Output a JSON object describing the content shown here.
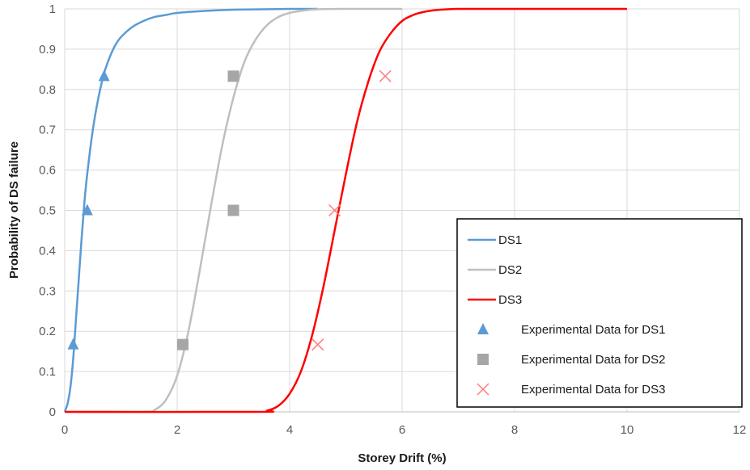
{
  "chart_data": {
    "type": "line",
    "title": "",
    "xlabel": "Storey Drift (%)",
    "ylabel": "Probability of DS failure",
    "xlim": [
      0,
      12
    ],
    "ylim": [
      0,
      1
    ],
    "x_ticks": [
      "0",
      "2",
      "4",
      "6",
      "8",
      "10",
      "12"
    ],
    "y_ticks": [
      "0",
      "0.1",
      "0.2",
      "0.3",
      "0.4",
      "0.5",
      "0.6",
      "0.7",
      "0.8",
      "0.9",
      "1"
    ],
    "grid": true,
    "legend_position": "bottom-right",
    "series": [
      {
        "name": "DS1",
        "kind": "line",
        "color": "#5b9bd5",
        "x": [
          0,
          0.05,
          0.1,
          0.15,
          0.2,
          0.25,
          0.3,
          0.35,
          0.4,
          0.5,
          0.6,
          0.7,
          0.8,
          0.9,
          1.0,
          1.2,
          1.4,
          1.6,
          1.8,
          2.0,
          2.5,
          3.0,
          3.5,
          4.0,
          4.5
        ],
        "y": [
          0,
          0.02,
          0.06,
          0.13,
          0.23,
          0.33,
          0.43,
          0.52,
          0.59,
          0.7,
          0.78,
          0.84,
          0.88,
          0.91,
          0.93,
          0.955,
          0.97,
          0.98,
          0.985,
          0.99,
          0.995,
          0.998,
          0.999,
          1.0,
          1.0
        ]
      },
      {
        "name": "DS2",
        "kind": "line",
        "color": "#bfbfbf",
        "x": [
          0,
          1.4,
          1.6,
          1.8,
          2.0,
          2.2,
          2.4,
          2.6,
          2.8,
          3.0,
          3.2,
          3.4,
          3.6,
          3.8,
          4.0,
          4.2,
          4.5,
          5.0,
          5.5,
          6.0
        ],
        "y": [
          0,
          0.0,
          0.005,
          0.03,
          0.09,
          0.2,
          0.35,
          0.51,
          0.66,
          0.78,
          0.87,
          0.925,
          0.96,
          0.98,
          0.99,
          0.995,
          0.999,
          1.0,
          1.0,
          1.0
        ]
      },
      {
        "name": "DS3",
        "kind": "line",
        "color": "#ff0000",
        "x": [
          0,
          3.4,
          3.6,
          3.8,
          4.0,
          4.2,
          4.4,
          4.6,
          4.8,
          5.0,
          5.2,
          5.4,
          5.6,
          5.8,
          6.0,
          6.2,
          6.4,
          6.6,
          6.8,
          7.0,
          7.5,
          8.0,
          9.0,
          10.0
        ],
        "y": [
          0,
          0.0,
          0.003,
          0.015,
          0.045,
          0.1,
          0.19,
          0.31,
          0.45,
          0.59,
          0.72,
          0.82,
          0.895,
          0.94,
          0.97,
          0.985,
          0.993,
          0.997,
          0.999,
          1.0,
          1.0,
          1.0,
          1.0,
          1.0
        ]
      },
      {
        "name": "Experimental Data for DS1",
        "kind": "scatter",
        "marker": "triangle",
        "color": "#5b9bd5",
        "x": [
          0.15,
          0.4,
          0.7
        ],
        "y": [
          0.167,
          0.5,
          0.833
        ]
      },
      {
        "name": "Experimental Data for DS2",
        "kind": "scatter",
        "marker": "square",
        "color": "#a6a6a6",
        "x": [
          2.1,
          3.0,
          3.0
        ],
        "y": [
          0.167,
          0.5,
          0.833
        ]
      },
      {
        "name": "Experimental Data for DS3",
        "kind": "scatter",
        "marker": "x",
        "color": "#ff7c80",
        "x": [
          4.5,
          4.8,
          5.7
        ],
        "y": [
          0.167,
          0.5,
          0.833
        ]
      }
    ]
  }
}
